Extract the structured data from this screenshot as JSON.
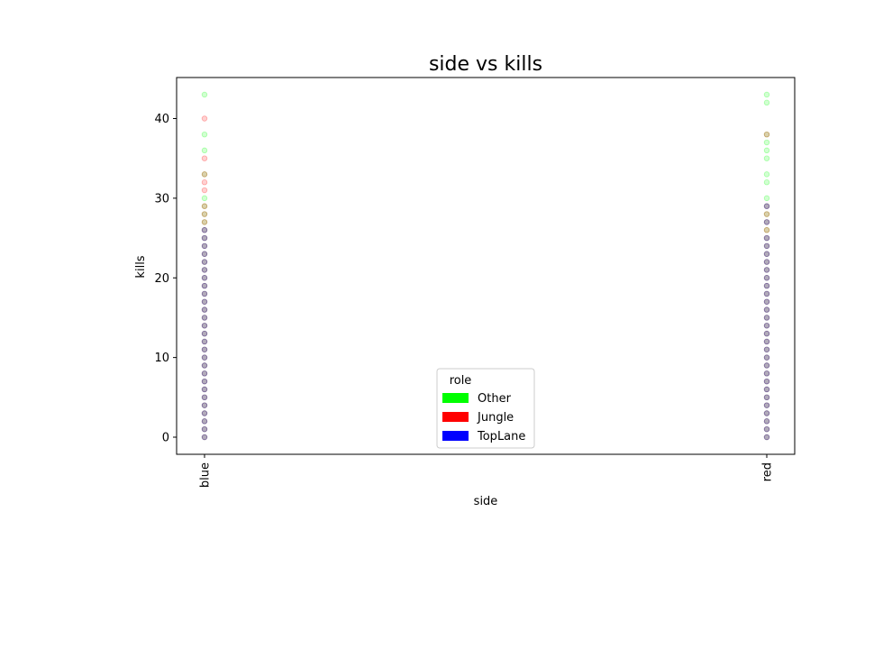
{
  "chart_data": {
    "type": "scatter",
    "title": "side vs kills",
    "xlabel": "side",
    "ylabel": "kills",
    "categories": [
      "blue",
      "red"
    ],
    "yticks": [
      0,
      10,
      20,
      30,
      40
    ],
    "ylim": [
      -2.15,
      45.15
    ],
    "grid": false,
    "legend": {
      "title": "role",
      "placement": "lower center",
      "entries": [
        {
          "name": "Other",
          "color": "#00ff00"
        },
        {
          "name": "Jungle",
          "color": "#ff0000"
        },
        {
          "name": "TopLane",
          "color": "#0000ff"
        }
      ]
    },
    "series": [
      {
        "name": "Other",
        "color": "#00ff00",
        "points": [
          {
            "x": "blue",
            "y": [
              0,
              1,
              2,
              3,
              4,
              5,
              6,
              7,
              8,
              9,
              10,
              11,
              12,
              13,
              14,
              15,
              16,
              17,
              18,
              19,
              20,
              21,
              22,
              23,
              24,
              25,
              26,
              27,
              28,
              29,
              30,
              33,
              36,
              38,
              43
            ]
          },
          {
            "x": "red",
            "y": [
              0,
              1,
              2,
              3,
              4,
              5,
              6,
              7,
              8,
              9,
              10,
              11,
              12,
              13,
              14,
              15,
              16,
              17,
              18,
              19,
              20,
              21,
              22,
              23,
              24,
              25,
              26,
              27,
              28,
              29,
              30,
              32,
              33,
              35,
              36,
              37,
              38,
              42,
              43
            ]
          }
        ]
      },
      {
        "name": "Jungle",
        "color": "#ff0000",
        "points": [
          {
            "x": "blue",
            "y": [
              0,
              1,
              2,
              3,
              4,
              5,
              6,
              7,
              8,
              9,
              10,
              11,
              12,
              13,
              14,
              15,
              16,
              17,
              18,
              19,
              20,
              21,
              22,
              23,
              24,
              25,
              26,
              27,
              28,
              29,
              31,
              32,
              33,
              35,
              40
            ]
          },
          {
            "x": "red",
            "y": [
              0,
              1,
              2,
              3,
              4,
              5,
              6,
              7,
              8,
              9,
              10,
              11,
              12,
              13,
              14,
              15,
              16,
              17,
              18,
              19,
              20,
              21,
              22,
              23,
              24,
              25,
              26,
              27,
              28,
              29,
              38
            ]
          }
        ]
      },
      {
        "name": "TopLane",
        "color": "#0000ff",
        "points": [
          {
            "x": "blue",
            "y": [
              0,
              1,
              2,
              3,
              4,
              5,
              6,
              7,
              8,
              9,
              10,
              11,
              12,
              13,
              14,
              15,
              16,
              17,
              18,
              19,
              20,
              21,
              22,
              23,
              24,
              25,
              26
            ]
          },
          {
            "x": "red",
            "y": [
              0,
              1,
              2,
              3,
              4,
              5,
              6,
              7,
              8,
              9,
              10,
              11,
              12,
              13,
              14,
              15,
              16,
              17,
              18,
              19,
              20,
              21,
              22,
              23,
              24,
              25,
              27,
              29
            ]
          }
        ]
      }
    ]
  }
}
